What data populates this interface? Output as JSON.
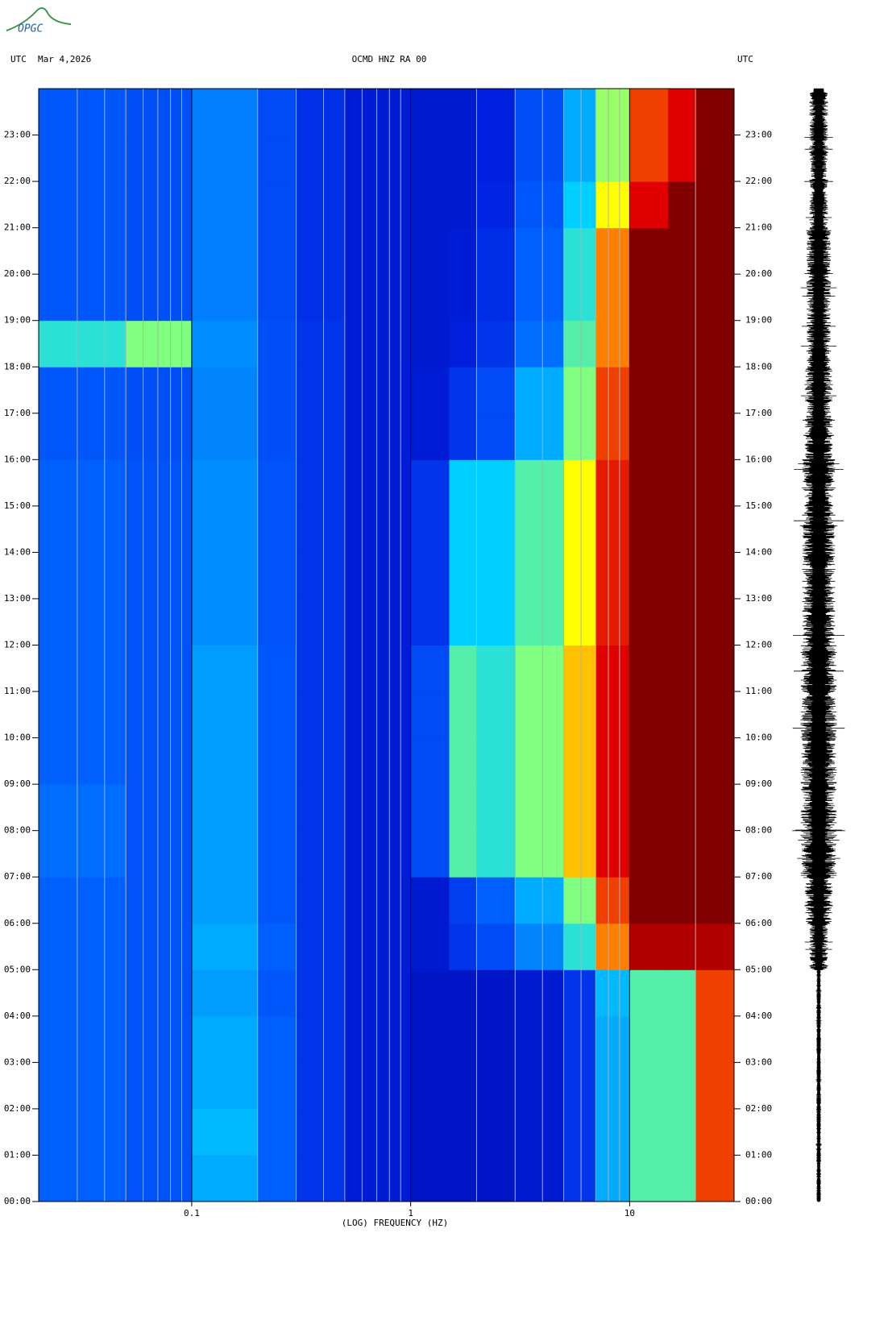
{
  "logo": "OPGC",
  "chart_data": {
    "type": "spectrogram",
    "title": "OCMD HNZ RA 00",
    "timezone_left": "UTC",
    "date": "Mar 4,2026",
    "timezone_right": "UTC",
    "xlabel": "(LOG) FREQUENCY (HZ)",
    "xscale": "log",
    "xlim": [
      0.02,
      30
    ],
    "xticks": [
      0.1,
      1,
      10
    ],
    "xminor_ticks": [
      0.03,
      0.04,
      0.05,
      0.06,
      0.07,
      0.08,
      0.09,
      0.2,
      0.3,
      0.4,
      0.5,
      0.6,
      0.7,
      0.8,
      0.9,
      2,
      3,
      4,
      5,
      6,
      7,
      8,
      9,
      20
    ],
    "ylim": [
      0,
      24
    ],
    "yticks": [
      {
        "value": 0,
        "label": "00:00"
      },
      {
        "value": 1,
        "label": "01:00"
      },
      {
        "value": 2,
        "label": "02:00"
      },
      {
        "value": 3,
        "label": "03:00"
      },
      {
        "value": 4,
        "label": "04:00"
      },
      {
        "value": 5,
        "label": "05:00"
      },
      {
        "value": 6,
        "label": "06:00"
      },
      {
        "value": 7,
        "label": "07:00"
      },
      {
        "value": 8,
        "label": "08:00"
      },
      {
        "value": 9,
        "label": "09:00"
      },
      {
        "value": 10,
        "label": "10:00"
      },
      {
        "value": 11,
        "label": "11:00"
      },
      {
        "value": 12,
        "label": "12:00"
      },
      {
        "value": 13,
        "label": "13:00"
      },
      {
        "value": 14,
        "label": "14:00"
      },
      {
        "value": 15,
        "label": "15:00"
      },
      {
        "value": 16,
        "label": "16:00"
      },
      {
        "value": 17,
        "label": "17:00"
      },
      {
        "value": 18,
        "label": "18:00"
      },
      {
        "value": 19,
        "label": "19:00"
      },
      {
        "value": 20,
        "label": "20:00"
      },
      {
        "value": 21,
        "label": "21:00"
      },
      {
        "value": 22,
        "label": "22:00"
      },
      {
        "value": 23,
        "label": "23:00"
      }
    ],
    "freq_edges": [
      0.02,
      0.05,
      0.1,
      0.2,
      0.3,
      0.5,
      1,
      1.5,
      2,
      3,
      5,
      7,
      10,
      15,
      20,
      30
    ],
    "z": [
      [
        0.3,
        0.27,
        0.4,
        0.3,
        0.2,
        0.13,
        0.1,
        0.1,
        0.1,
        0.12,
        0.2,
        0.4,
        0.55,
        0.55,
        0.85
      ],
      [
        0.3,
        0.27,
        0.42,
        0.3,
        0.2,
        0.13,
        0.1,
        0.1,
        0.1,
        0.12,
        0.2,
        0.4,
        0.55,
        0.55,
        0.85
      ],
      [
        0.3,
        0.27,
        0.4,
        0.3,
        0.2,
        0.13,
        0.1,
        0.1,
        0.1,
        0.12,
        0.2,
        0.4,
        0.55,
        0.55,
        0.85
      ],
      [
        0.3,
        0.27,
        0.4,
        0.3,
        0.2,
        0.13,
        0.1,
        0.1,
        0.1,
        0.12,
        0.2,
        0.4,
        0.55,
        0.55,
        0.85
      ],
      [
        0.3,
        0.27,
        0.38,
        0.28,
        0.2,
        0.13,
        0.1,
        0.1,
        0.1,
        0.12,
        0.2,
        0.42,
        0.55,
        0.55,
        0.85
      ],
      [
        0.3,
        0.27,
        0.4,
        0.3,
        0.2,
        0.13,
        0.12,
        0.2,
        0.25,
        0.35,
        0.5,
        0.8,
        0.95,
        0.95,
        0.95
      ],
      [
        0.3,
        0.27,
        0.38,
        0.28,
        0.2,
        0.13,
        0.12,
        0.22,
        0.3,
        0.4,
        0.6,
        0.85,
        1,
        1,
        1
      ],
      [
        0.32,
        0.27,
        0.38,
        0.28,
        0.2,
        0.13,
        0.25,
        0.55,
        0.5,
        0.6,
        0.75,
        0.9,
        1,
        1,
        1
      ],
      [
        0.32,
        0.27,
        0.38,
        0.28,
        0.2,
        0.13,
        0.25,
        0.55,
        0.5,
        0.6,
        0.75,
        0.9,
        1,
        1,
        1
      ],
      [
        0.3,
        0.27,
        0.38,
        0.28,
        0.2,
        0.13,
        0.25,
        0.55,
        0.5,
        0.6,
        0.75,
        0.9,
        1,
        1,
        1
      ],
      [
        0.3,
        0.27,
        0.38,
        0.28,
        0.2,
        0.13,
        0.25,
        0.55,
        0.5,
        0.6,
        0.75,
        0.9,
        1,
        1,
        1
      ],
      [
        0.3,
        0.27,
        0.38,
        0.28,
        0.2,
        0.13,
        0.25,
        0.55,
        0.5,
        0.6,
        0.75,
        0.9,
        1,
        1,
        1
      ],
      [
        0.3,
        0.27,
        0.36,
        0.27,
        0.2,
        0.13,
        0.2,
        0.45,
        0.45,
        0.55,
        0.7,
        0.88,
        1,
        1,
        1
      ],
      [
        0.3,
        0.27,
        0.36,
        0.27,
        0.2,
        0.13,
        0.2,
        0.45,
        0.45,
        0.55,
        0.7,
        0.88,
        1,
        1,
        1
      ],
      [
        0.3,
        0.27,
        0.36,
        0.27,
        0.2,
        0.13,
        0.2,
        0.45,
        0.45,
        0.55,
        0.7,
        0.88,
        1,
        1,
        1
      ],
      [
        0.3,
        0.27,
        0.36,
        0.27,
        0.2,
        0.13,
        0.2,
        0.45,
        0.45,
        0.55,
        0.7,
        0.88,
        1,
        1,
        1
      ],
      [
        0.28,
        0.26,
        0.35,
        0.26,
        0.2,
        0.13,
        0.13,
        0.2,
        0.25,
        0.4,
        0.6,
        0.85,
        1,
        1,
        1
      ],
      [
        0.28,
        0.26,
        0.35,
        0.26,
        0.2,
        0.13,
        0.13,
        0.2,
        0.25,
        0.4,
        0.6,
        0.85,
        1,
        1,
        1
      ],
      [
        0.5,
        0.6,
        0.36,
        0.26,
        0.2,
        0.13,
        0.12,
        0.14,
        0.2,
        0.32,
        0.55,
        0.8,
        1,
        1,
        1
      ],
      [
        0.28,
        0.26,
        0.34,
        0.25,
        0.19,
        0.13,
        0.12,
        0.13,
        0.18,
        0.3,
        0.5,
        0.8,
        1,
        1,
        1
      ],
      [
        0.28,
        0.26,
        0.34,
        0.25,
        0.19,
        0.13,
        0.12,
        0.13,
        0.18,
        0.3,
        0.5,
        0.8,
        1,
        1,
        1
      ],
      [
        0.28,
        0.26,
        0.34,
        0.25,
        0.19,
        0.13,
        0.12,
        0.12,
        0.16,
        0.28,
        0.45,
        0.7,
        0.9,
        1,
        1
      ],
      [
        0.28,
        0.26,
        0.34,
        0.25,
        0.19,
        0.13,
        0.12,
        0.12,
        0.15,
        0.26,
        0.4,
        0.62,
        0.85,
        0.9,
        1
      ],
      [
        0.28,
        0.26,
        0.34,
        0.25,
        0.19,
        0.13,
        0.12,
        0.12,
        0.15,
        0.26,
        0.4,
        0.62,
        0.85,
        0.9,
        1
      ]
    ],
    "waveform_amplitude": [
      0.05,
      0.05,
      0.05,
      0.05,
      0.05,
      0.3,
      0.45,
      0.6,
      0.6,
      0.6,
      0.6,
      0.6,
      0.55,
      0.55,
      0.55,
      0.55,
      0.45,
      0.45,
      0.4,
      0.4,
      0.4,
      0.3,
      0.3,
      0.3
    ]
  }
}
